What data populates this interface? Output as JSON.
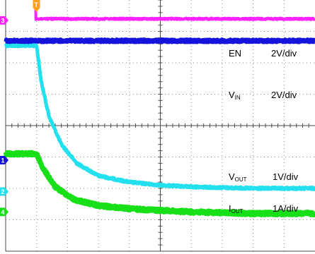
{
  "colors": {
    "en": "#ff22ff",
    "vin": "#1414dc",
    "vout": "#22e0ee",
    "iout": "#18e018",
    "trigger": "#ff9f1c",
    "grid": "#8c8c8c",
    "background": "#ffffff"
  },
  "chart_data": {
    "type": "line",
    "grid": true,
    "grid_divisions": {
      "horizontal": 10,
      "vertical": 8
    },
    "x_range_div": [
      0,
      10
    ],
    "trigger_time_div": 0.95,
    "series": [
      {
        "id": "en",
        "name": "EN",
        "channel_marker": "3",
        "scale": "2V/div",
        "marker_level_div": 3.35,
        "levels_div": [
          [
            0,
            7.85
          ],
          [
            0.95,
            7.85
          ],
          [
            0.97,
            3.4
          ],
          [
            10,
            3.4
          ]
        ]
      },
      {
        "id": "vin",
        "name": "VIN",
        "scale": "2V/div",
        "levels_div": [
          [
            0,
            2.7
          ],
          [
            10,
            2.7
          ]
        ]
      },
      {
        "id": "vout",
        "name": "VOUT",
        "channel_marker": "2",
        "scale": "1V/div",
        "marker_level_div": -2.1,
        "levels_div": [
          [
            0,
            2.55
          ],
          [
            1.0,
            2.55
          ],
          [
            1.15,
            1.4
          ],
          [
            1.4,
            0.3
          ],
          [
            1.8,
            -0.6
          ],
          [
            2.3,
            -1.2
          ],
          [
            3.0,
            -1.6
          ],
          [
            4.0,
            -1.8
          ],
          [
            5.0,
            -1.9
          ],
          [
            6.0,
            -1.95
          ],
          [
            8.0,
            -2.0
          ],
          [
            10,
            -2.0
          ]
        ]
      },
      {
        "id": "iout",
        "name": "IOUT",
        "channel_marker": "4",
        "scale": "1A/div",
        "marker_level_div": -2.75,
        "levels_div": [
          [
            0,
            -0.9
          ],
          [
            1.0,
            -0.9
          ],
          [
            1.2,
            -1.35
          ],
          [
            1.6,
            -1.95
          ],
          [
            2.2,
            -2.35
          ],
          [
            3.0,
            -2.55
          ],
          [
            4.0,
            -2.65
          ],
          [
            5.0,
            -2.7
          ],
          [
            6.0,
            -2.75
          ],
          [
            8.0,
            -2.8
          ],
          [
            10,
            -2.8
          ]
        ]
      }
    ],
    "ground_markers": [
      {
        "label": "1",
        "level_div": -1.1
      }
    ],
    "annotations": [
      {
        "text": "EN",
        "scale": "2V/div"
      },
      {
        "text": "V",
        "sub": "IN",
        "scale": "2V/div"
      },
      {
        "text": "V",
        "sub": "OUT",
        "scale": "1V/div"
      },
      {
        "text": "I",
        "sub": "OUT",
        "scale": "1A/div"
      }
    ],
    "trigger_marker": "T"
  }
}
